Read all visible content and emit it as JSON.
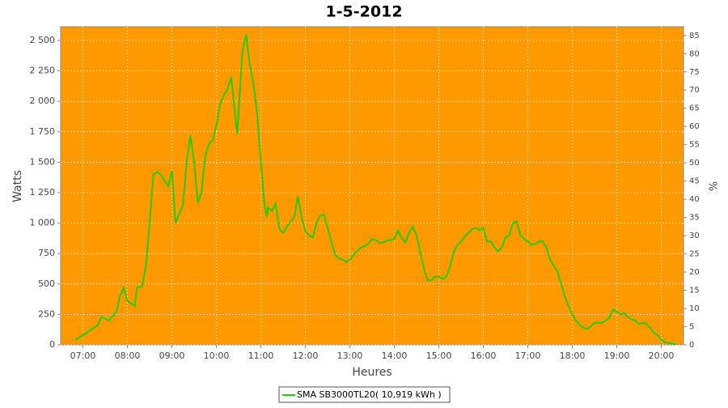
{
  "chart_data": {
    "type": "line",
    "title": "1-5-2012",
    "x_label": "Heures",
    "y_label": "Watts",
    "y2_label": "%",
    "x": [
      "06:50",
      "07:00",
      "07:10",
      "07:20",
      "07:25",
      "07:35",
      "07:45",
      "07:50",
      "07:55",
      "08:00",
      "08:05",
      "08:10",
      "08:13",
      "08:20",
      "08:25",
      "08:30",
      "08:35",
      "08:40",
      "08:45",
      "08:50",
      "08:55",
      "09:00",
      "09:05",
      "09:10",
      "09:15",
      "09:20",
      "09:25",
      "09:30",
      "09:35",
      "09:40",
      "09:45",
      "09:50",
      "09:55",
      "10:00",
      "10:05",
      "10:10",
      "10:15",
      "10:20",
      "10:25",
      "10:28",
      "10:35",
      "10:40",
      "10:45",
      "10:50",
      "10:55",
      "11:00",
      "11:05",
      "11:08",
      "11:10",
      "11:15",
      "11:20",
      "11:25",
      "11:30",
      "11:35",
      "11:40",
      "11:45",
      "11:50",
      "11:55",
      "12:00",
      "12:05",
      "12:10",
      "12:15",
      "12:20",
      "12:25",
      "12:30",
      "12:35",
      "12:40",
      "12:45",
      "12:50",
      "12:55",
      "13:00",
      "13:05",
      "13:10",
      "13:15",
      "13:20",
      "13:25",
      "13:30",
      "13:35",
      "13:40",
      "13:45",
      "13:50",
      "13:55",
      "14:00",
      "14:05",
      "14:10",
      "14:15",
      "14:20",
      "14:25",
      "14:30",
      "14:35",
      "14:40",
      "14:45",
      "14:50",
      "14:55",
      "15:00",
      "15:05",
      "15:10",
      "15:15",
      "15:20",
      "15:25",
      "15:30",
      "15:35",
      "15:40",
      "15:45",
      "15:50",
      "15:55",
      "16:00",
      "16:05",
      "16:10",
      "16:15",
      "16:20",
      "16:25",
      "16:30",
      "16:35",
      "16:40",
      "16:45",
      "16:50",
      "16:55",
      "17:00",
      "17:05",
      "17:10",
      "17:15",
      "17:20",
      "17:25",
      "17:30",
      "17:35",
      "17:40",
      "17:45",
      "17:50",
      "17:55",
      "18:00",
      "18:05",
      "18:10",
      "18:15",
      "18:20",
      "18:25",
      "18:30",
      "18:35",
      "18:40",
      "18:45",
      "18:50",
      "18:55",
      "19:00",
      "19:05",
      "19:10",
      "19:15",
      "19:20",
      "19:25",
      "19:30",
      "19:35",
      "19:40",
      "19:45",
      "19:50",
      "19:55",
      "20:00",
      "20:05",
      "20:10",
      "20:15",
      "20:20"
    ],
    "series": [
      {
        "name": "SMA SB3000TL20( 10,919 kWh )",
        "color": "#22cc00",
        "values": [
          40,
          80,
          120,
          160,
          230,
          200,
          270,
          400,
          470,
          360,
          340,
          320,
          470,
          480,
          650,
          1000,
          1400,
          1420,
          1400,
          1350,
          1300,
          1430,
          1000,
          1080,
          1150,
          1500,
          1720,
          1500,
          1170,
          1250,
          1550,
          1650,
          1680,
          1800,
          1980,
          2050,
          2100,
          2200,
          1900,
          1730,
          2400,
          2550,
          2300,
          2150,
          1900,
          1500,
          1150,
          1050,
          1130,
          1100,
          1160,
          950,
          920,
          970,
          1010,
          1050,
          1220,
          1050,
          930,
          900,
          880,
          1000,
          1060,
          1070,
          960,
          850,
          740,
          710,
          700,
          680,
          700,
          740,
          770,
          800,
          810,
          830,
          870,
          860,
          840,
          840,
          860,
          860,
          870,
          940,
          880,
          840,
          920,
          970,
          900,
          760,
          620,
          530,
          530,
          560,
          560,
          540,
          560,
          640,
          760,
          820,
          850,
          890,
          920,
          950,
          960,
          940,
          960,
          850,
          850,
          800,
          770,
          800,
          880,
          900,
          1000,
          1010,
          900,
          870,
          850,
          820,
          830,
          850,
          850,
          800,
          700,
          650,
          600,
          500,
          400,
          320,
          250,
          200,
          160,
          140,
          130,
          150,
          180,
          180,
          180,
          200,
          220,
          290,
          270,
          250,
          260,
          230,
          210,
          200,
          170,
          180,
          170,
          140,
          100,
          80,
          40,
          20,
          15,
          10,
          5
        ]
      }
    ],
    "xlim": [
      "06:30",
      "20:30"
    ],
    "xticks": [
      "07:00",
      "08:00",
      "09:00",
      "10:00",
      "11:00",
      "12:00",
      "13:00",
      "14:00",
      "15:00",
      "16:00",
      "17:00",
      "18:00",
      "19:00",
      "20:00"
    ],
    "ylim": [
      0,
      2613
    ],
    "yticks": [
      0,
      250,
      500,
      750,
      {
        "value": 1000,
        "label": "1 000"
      },
      {
        "value": 1250,
        "label": "1 250"
      },
      {
        "value": 1500,
        "label": "1 500"
      },
      {
        "value": 1750,
        "label": "1 750"
      },
      {
        "value": 2000,
        "label": "2 000"
      },
      {
        "value": 2250,
        "label": "2 250"
      },
      {
        "value": 2500,
        "label": "2 500"
      }
    ],
    "y2lim": [
      0,
      87.4
    ],
    "y2ticks": [
      0,
      5,
      10,
      15,
      20,
      25,
      30,
      35,
      40,
      45,
      50,
      55,
      60,
      65,
      70,
      75,
      80,
      85
    ],
    "grid": true,
    "background": "#ff9900",
    "legend": "bottom"
  }
}
